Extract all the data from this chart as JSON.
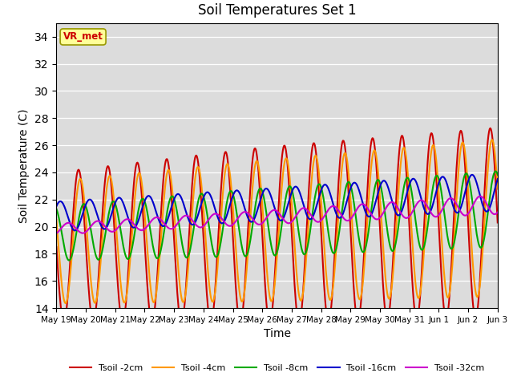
{
  "title": "Soil Temperatures Set 1",
  "xlabel": "Time",
  "ylabel": "Soil Temperature (C)",
  "ylim": [
    14,
    35
  ],
  "yticks": [
    14,
    16,
    18,
    20,
    22,
    24,
    26,
    28,
    30,
    32,
    34
  ],
  "annotation": "VR_met",
  "annotation_color": "#cc0000",
  "annotation_bg": "#ffff99",
  "background_color": "#dcdcdc",
  "series": [
    {
      "label": "Tsoil -2cm",
      "color": "#cc0000",
      "lw": 1.5
    },
    {
      "label": "Tsoil -4cm",
      "color": "#ff9900",
      "lw": 1.5
    },
    {
      "label": "Tsoil -8cm",
      "color": "#00aa00",
      "lw": 1.5
    },
    {
      "label": "Tsoil -16cm",
      "color": "#0000cc",
      "lw": 1.5
    },
    {
      "label": "Tsoil -32cm",
      "color": "#cc00cc",
      "lw": 1.5
    }
  ],
  "tick_labels": [
    "May 19",
    "May 20",
    "May 21",
    "May 22",
    "May 23",
    "May 24",
    "May 25",
    "May 26",
    "May 27",
    "May 28",
    "May 29",
    "May 30",
    "May 31",
    "Jun 1",
    "Jun 2",
    "Jun 3"
  ]
}
